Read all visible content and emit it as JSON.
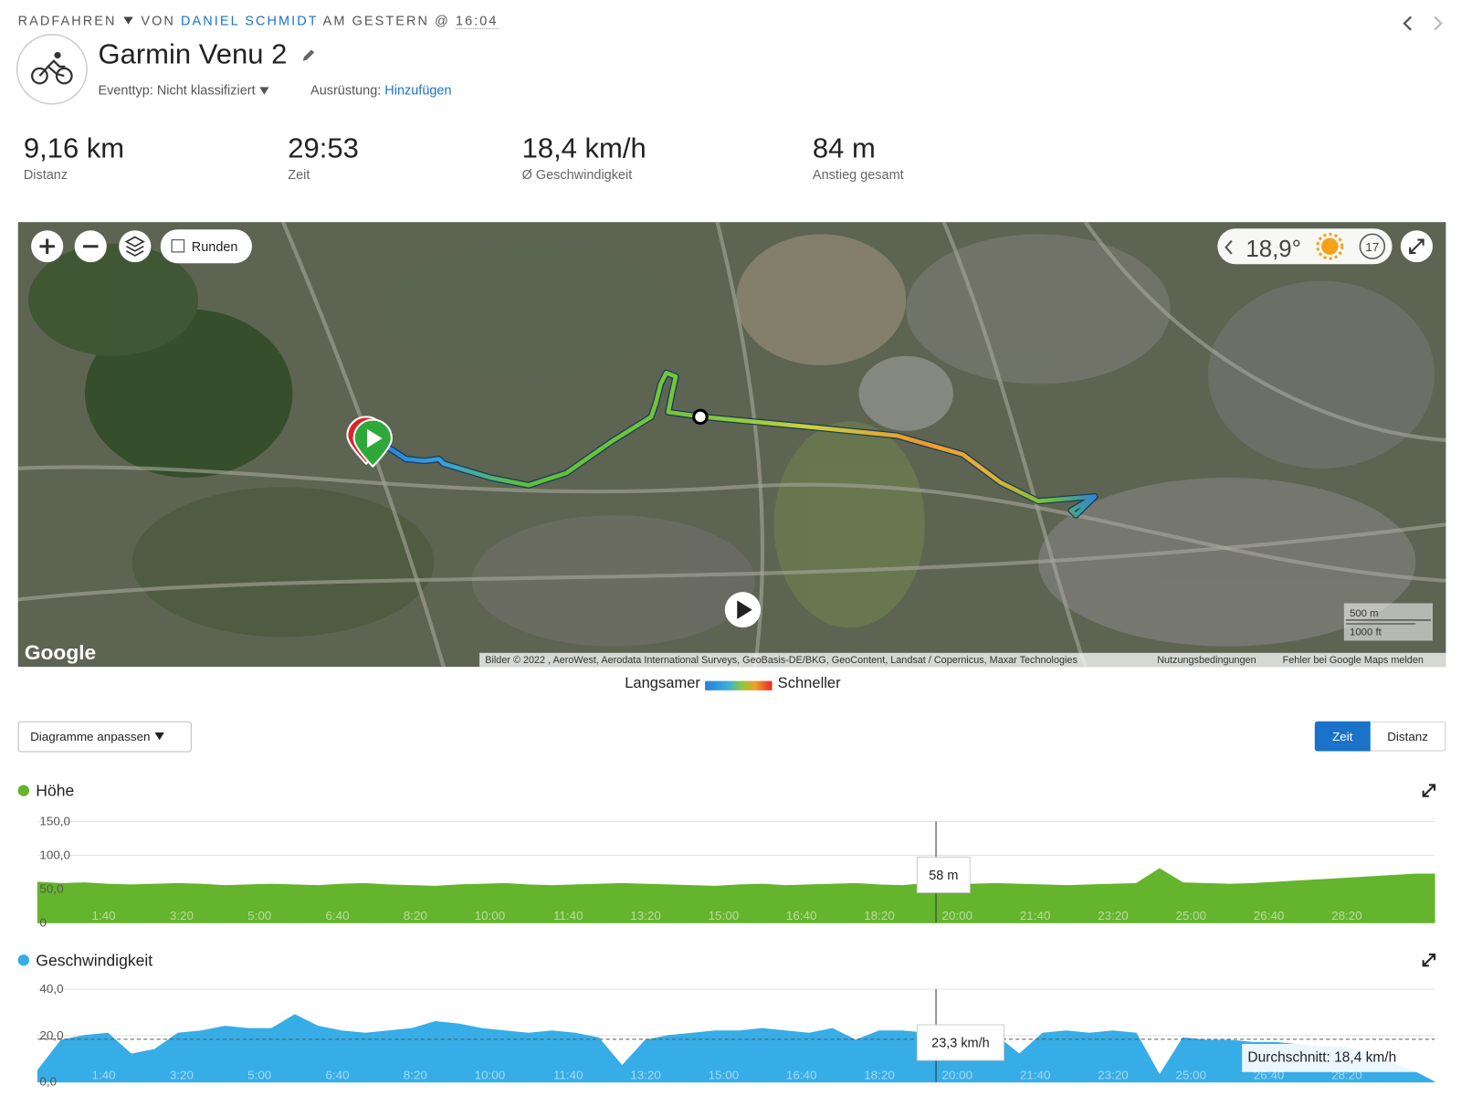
{
  "header": {
    "activity_type": "RADFAHREN",
    "by": "VON",
    "author": "DANIEL SCHMIDT",
    "when": "AM GESTERN @",
    "time": "16:04",
    "title": "Garmin Venu 2",
    "event_type": "Eventtyp: Nicht klassifiziert",
    "gear_label": "Ausrüstung:",
    "gear_action": "Hinzufügen"
  },
  "stats": [
    {
      "value": "9,16 km",
      "label": "Distanz"
    },
    {
      "value": "29:53",
      "label": "Zeit"
    },
    {
      "value": "18,4 km/h",
      "label": "Ø Geschwindigkeit"
    },
    {
      "value": "84 m",
      "label": "Anstieg gesamt"
    }
  ],
  "map": {
    "laps_toggle": "Runden",
    "temperature": "18,9°",
    "wind": "17",
    "logo": "Google",
    "attribution": "Bilder © 2022 , AeroWest, Aerodata International Surveys, GeoBasis-DE/BKG, GeoContent, Landsat / Copernicus, Maxar Technologies",
    "terms": "Nutzungsbedingungen",
    "report": "Fehler bei Google Maps melden",
    "scale_metric": "500 m",
    "scale_imperial": "1000 ft",
    "legend_slow": "Langsamer",
    "legend_fast": "Schneller"
  },
  "controls": {
    "customize": "Diagramme anpassen",
    "x_mode_options": [
      "Zeit",
      "Distanz"
    ]
  },
  "chart_data": [
    {
      "type": "area",
      "x": [
        0,
        30,
        60,
        90,
        120,
        150,
        180,
        210,
        240,
        270,
        300,
        330,
        360,
        390,
        420,
        450,
        480,
        510,
        540,
        570,
        600,
        630,
        660,
        690,
        720,
        750,
        780,
        810,
        840,
        870,
        900,
        930,
        960,
        990,
        1020,
        1050,
        1080,
        1110,
        1140,
        1170,
        1200,
        1230,
        1260,
        1290,
        1320,
        1350,
        1380,
        1410,
        1440,
        1470,
        1500,
        1530,
        1560,
        1590,
        1620,
        1650,
        1680,
        1710,
        1740,
        1770,
        1793
      ],
      "series": [
        {
          "name": "Höhe",
          "color": "#64b42d",
          "values": [
            60,
            58,
            59,
            57,
            56,
            57,
            58,
            57,
            55,
            56,
            57,
            56,
            55,
            57,
            58,
            56,
            55,
            54,
            56,
            57,
            58,
            56,
            55,
            56,
            57,
            58,
            57,
            56,
            55,
            54,
            56,
            57,
            55,
            56,
            57,
            58,
            56,
            55,
            58,
            58,
            57,
            58,
            57,
            56,
            55,
            56,
            57,
            58,
            80,
            59,
            58,
            57,
            58,
            60,
            62,
            64,
            66,
            68,
            70,
            72,
            72
          ]
        }
      ],
      "xlim": [
        0,
        1793
      ],
      "xticks": [
        {
          "value": 100,
          "label": "1:40"
        },
        {
          "value": 200,
          "label": "3:20"
        },
        {
          "value": 300,
          "label": "5:00"
        },
        {
          "value": 400,
          "label": "6:40"
        },
        {
          "value": 500,
          "label": "8:20"
        },
        {
          "value": 600,
          "label": "10:00"
        },
        {
          "value": 700,
          "label": "11:40"
        },
        {
          "value": 800,
          "label": "13:20"
        },
        {
          "value": 900,
          "label": "15:00"
        },
        {
          "value": 1000,
          "label": "16:40"
        },
        {
          "value": 1100,
          "label": "18:20"
        },
        {
          "value": 1200,
          "label": "20:00"
        },
        {
          "value": 1300,
          "label": "21:40"
        },
        {
          "value": 1400,
          "label": "23:20"
        },
        {
          "value": 1500,
          "label": "25:00"
        },
        {
          "value": 1600,
          "label": "26:40"
        },
        {
          "value": 1700,
          "label": "28:20"
        }
      ],
      "ylim": [
        0,
        150
      ],
      "yticks": [
        0,
        {
          "value": 50,
          "label": "50,0"
        },
        {
          "value": 100,
          "label": "100,0"
        },
        {
          "value": 150,
          "label": "150,0"
        }
      ],
      "grid": true,
      "tooltip": {
        "x": 1153,
        "value": 58,
        "label": "58 m"
      }
    },
    {
      "type": "area",
      "x": [
        0,
        30,
        60,
        90,
        120,
        150,
        180,
        210,
        240,
        270,
        300,
        330,
        360,
        390,
        420,
        450,
        480,
        510,
        540,
        570,
        600,
        630,
        660,
        690,
        720,
        750,
        780,
        810,
        840,
        870,
        900,
        930,
        960,
        990,
        1020,
        1050,
        1080,
        1110,
        1140,
        1170,
        1200,
        1230,
        1260,
        1290,
        1320,
        1350,
        1380,
        1410,
        1440,
        1470,
        1500,
        1530,
        1560,
        1590,
        1620,
        1650,
        1680,
        1710,
        1740,
        1770,
        1793
      ],
      "series": [
        {
          "name": "Geschwindigkeit",
          "color": "#36ade6",
          "values": [
            5,
            18,
            20,
            21,
            12,
            14,
            21,
            22,
            24,
            23,
            23,
            29,
            24,
            22,
            21,
            22,
            23,
            26,
            25,
            23,
            22,
            21,
            22,
            21,
            19,
            7,
            18,
            20,
            21,
            22,
            22,
            23,
            22,
            21,
            23,
            18,
            22,
            22,
            21,
            23,
            23,
            20,
            12,
            21,
            22,
            21,
            22,
            21,
            3,
            19,
            18,
            18,
            17,
            17,
            16,
            15,
            15,
            12,
            8,
            4,
            0
          ]
        }
      ],
      "xlim": [
        0,
        1793
      ],
      "xticks": [
        {
          "value": 100,
          "label": "1:40"
        },
        {
          "value": 200,
          "label": "3:20"
        },
        {
          "value": 300,
          "label": "5:00"
        },
        {
          "value": 400,
          "label": "6:40"
        },
        {
          "value": 500,
          "label": "8:20"
        },
        {
          "value": 600,
          "label": "10:00"
        },
        {
          "value": 700,
          "label": "11:40"
        },
        {
          "value": 800,
          "label": "13:20"
        },
        {
          "value": 900,
          "label": "15:00"
        },
        {
          "value": 1000,
          "label": "16:40"
        },
        {
          "value": 1100,
          "label": "18:20"
        },
        {
          "value": 1200,
          "label": "20:00"
        },
        {
          "value": 1300,
          "label": "21:40"
        },
        {
          "value": 1400,
          "label": "23:20"
        },
        {
          "value": 1500,
          "label": "25:00"
        },
        {
          "value": 1600,
          "label": "26:40"
        },
        {
          "value": 1700,
          "label": "28:20"
        }
      ],
      "ylim": [
        0,
        40
      ],
      "yticks": [
        {
          "value": 0,
          "label": "0,0"
        },
        {
          "value": 20,
          "label": "20,0"
        },
        {
          "value": 40,
          "label": "40,0"
        }
      ],
      "grid": true,
      "tooltip": {
        "x": 1153,
        "value": 23.3,
        "label": "23,3 km/h"
      },
      "average": {
        "value": 18.4,
        "label": "Durchschnitt: 18,4 km/h"
      }
    }
  ]
}
